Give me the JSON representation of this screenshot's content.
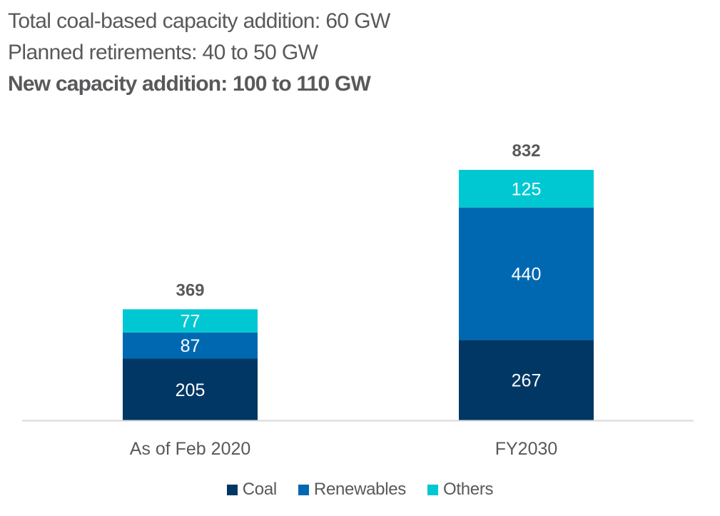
{
  "headlines": {
    "line1": "Total coal-based capacity addition: 60 GW",
    "line2": "Planned retirements: 40 to 50 GW",
    "line3": "New capacity addition: 100 to 110 GW"
  },
  "chart_data": {
    "type": "bar",
    "stacked": true,
    "title": "",
    "xlabel": "",
    "ylabel": "",
    "ylim": [
      0,
      832
    ],
    "grid": false,
    "legend_position": "bottom",
    "categories": [
      "As of Feb 2020",
      "FY2030"
    ],
    "series": [
      {
        "name": "Coal",
        "color": "#003764",
        "values": [
          205,
          267
        ]
      },
      {
        "name": "Renewables",
        "color": "#0068b1",
        "values": [
          87,
          440
        ]
      },
      {
        "name": "Others",
        "color": "#00c8d2",
        "values": [
          77,
          125
        ]
      }
    ],
    "totals": [
      369,
      832
    ]
  },
  "colors": {
    "axis": "#d9d9d9",
    "label_dark": "#58595b",
    "label_on_bar": "#ffffff"
  }
}
